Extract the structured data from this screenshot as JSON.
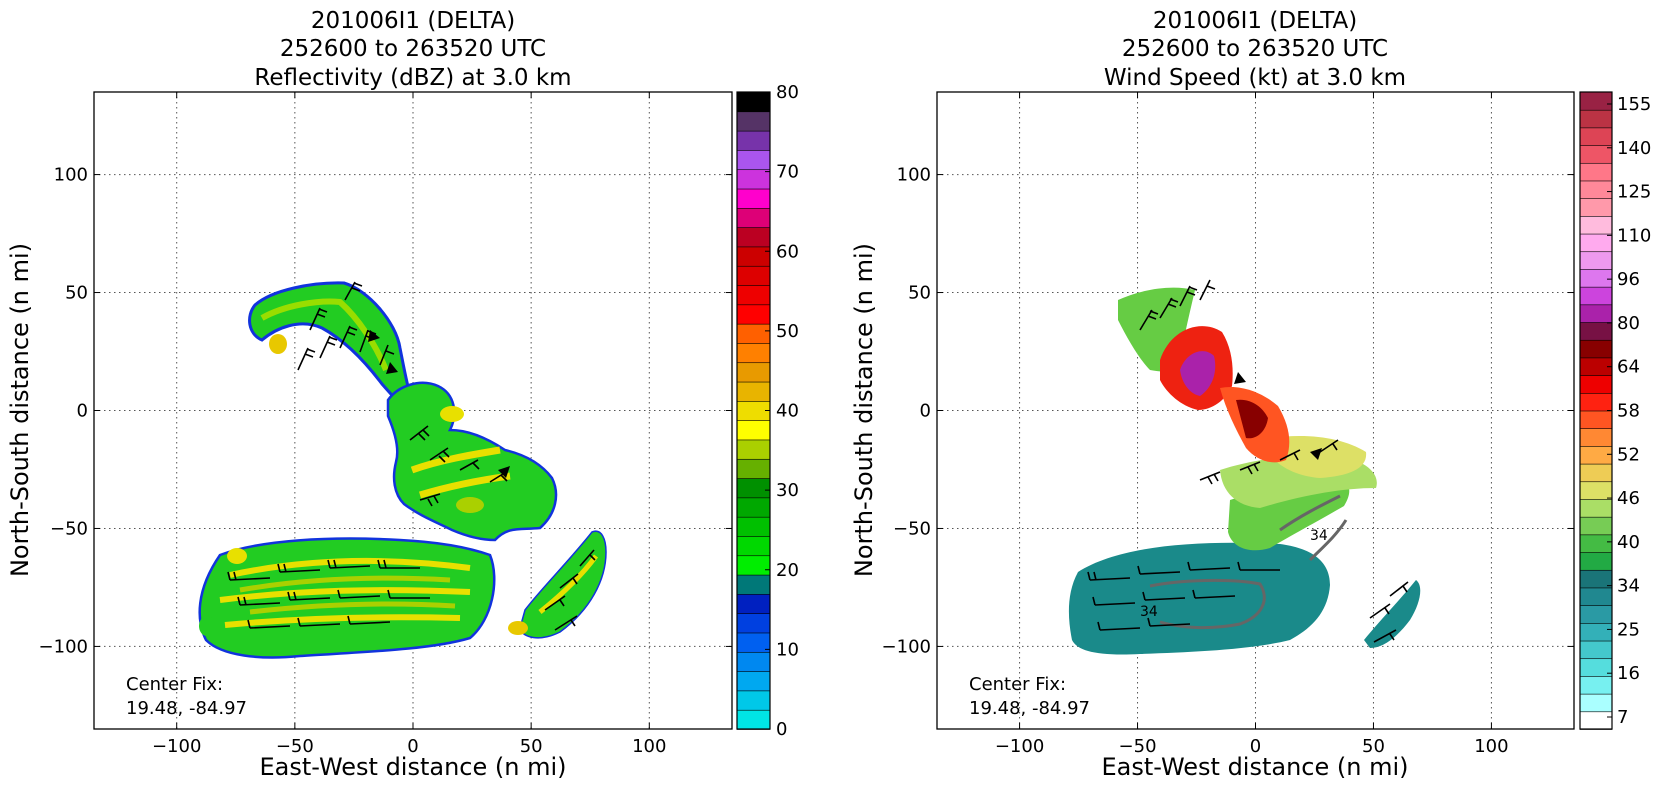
{
  "panels": [
    {
      "title": [
        "201006I1 (DELTA)",
        "252600 to 263520 UTC",
        "Reflectivity (dBZ) at 3.0 km"
      ],
      "xlabel": "East-West distance (n mi)",
      "ylabel": "North-South distance (n mi)",
      "xticks": [
        "−100",
        "−50",
        "0",
        "50",
        "100"
      ],
      "yticks": [
        "100",
        "50",
        "0",
        "−50",
        "−100"
      ],
      "center_fix": [
        "Center Fix:",
        "19.48, -84.97"
      ],
      "colorbar_ticks": [
        "80",
        "70",
        "60",
        "50",
        "40",
        "30",
        "20",
        "10",
        "0"
      ]
    },
    {
      "title": [
        "201006I1 (DELTA)",
        "252600 to 263520 UTC",
        "Wind Speed (kt) at 3.0 km"
      ],
      "xlabel": "East-West distance (n mi)",
      "ylabel": "North-South distance (n mi)",
      "xticks": [
        "−100",
        "−50",
        "0",
        "50",
        "100"
      ],
      "yticks": [
        "100",
        "50",
        "0",
        "−50",
        "−100"
      ],
      "center_fix": [
        "Center Fix:",
        "19.48, -84.97"
      ],
      "colorbar_ticks": [
        "155",
        "140",
        "125",
        "110",
        "96",
        "80",
        "64",
        "58",
        "52",
        "46",
        "40",
        "34",
        "25",
        "16",
        "7"
      ]
    }
  ],
  "chart_data": [
    {
      "type": "heatmap",
      "variable": "Reflectivity (dBZ)",
      "xlim": [
        -135,
        135
      ],
      "ylim": [
        -135,
        135
      ],
      "grid": true,
      "colorbar": {
        "min": 0,
        "max": 80,
        "ticks": [
          0,
          10,
          20,
          30,
          40,
          50,
          60,
          70,
          80
        ],
        "colors": [
          "#00e5e5",
          "#00c8e8",
          "#00a8f0",
          "#0088f0",
          "#0060f0",
          "#0040e0",
          "#0020c0",
          "#007878",
          "#00ee00",
          "#00d800",
          "#00c000",
          "#00a800",
          "#009000",
          "#66b000",
          "#aad000",
          "#ffff00",
          "#eedd00",
          "#e8b400",
          "#e89a00",
          "#ff8000",
          "#ff6000",
          "#ff0000",
          "#ee0000",
          "#dd0000",
          "#cc0000",
          "#bb0022",
          "#dd0077",
          "#ff00cc",
          "#cc33dd",
          "#aa55ee",
          "#7733aa",
          "#553366",
          "#000000"
        ]
      }
    },
    {
      "type": "heatmap",
      "variable": "Wind Speed (kt)",
      "xlim": [
        -135,
        135
      ],
      "ylim": [
        -135,
        135
      ],
      "grid": true,
      "colorbar": {
        "ticks": [
          7,
          16,
          25,
          34,
          40,
          46,
          52,
          58,
          64,
          80,
          96,
          110,
          125,
          140,
          155
        ],
        "colors": [
          "#ffffff",
          "#aaffff",
          "#77f0f0",
          "#55dddd",
          "#44c8cc",
          "#33b0b8",
          "#2a9aa4",
          "#208890",
          "#1a7478",
          "#22aa44",
          "#44bb44",
          "#77cc55",
          "#aade66",
          "#dde066",
          "#eecc55",
          "#ffaa44",
          "#ff8833",
          "#ff5522",
          "#ff2211",
          "#ee0000",
          "#bb0000",
          "#880000",
          "#771144",
          "#aa22aa",
          "#cc44dd",
          "#dd77ee",
          "#ee99ee",
          "#ffaaee",
          "#ffbbdd",
          "#ff99aa",
          "#ff8899",
          "#ff7788",
          "#ee5566",
          "#dd4455",
          "#bb3344",
          "#992244"
        ]
      }
    }
  ]
}
